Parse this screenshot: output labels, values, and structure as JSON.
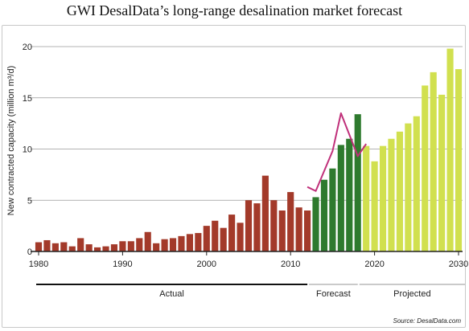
{
  "title": "GWI DesalData’s long-range desalination market forecast",
  "source": "Source: DesalData.com",
  "chart_data": {
    "type": "bar",
    "title": "GWI DesalData’s long-range desalination market forecast",
    "xlabel": "",
    "ylabel": "New contracted capacity (million m³/d)",
    "ylim": [
      0,
      20
    ],
    "xlim": [
      1980,
      2030
    ],
    "y_ticks": [
      0,
      5,
      10,
      15,
      20
    ],
    "x_ticks": [
      1980,
      1990,
      2000,
      2010,
      2020,
      2030
    ],
    "grid": true,
    "series": [
      {
        "name": "Actual",
        "color": "#a33a2a",
        "x": [
          1980,
          1981,
          1982,
          1983,
          1984,
          1985,
          1986,
          1987,
          1988,
          1989,
          1990,
          1991,
          1992,
          1993,
          1994,
          1995,
          1996,
          1997,
          1998,
          1999,
          2000,
          2001,
          2002,
          2003,
          2004,
          2005,
          2006,
          2007,
          2008,
          2009,
          2010,
          2011,
          2012
        ],
        "values": [
          0.9,
          1.1,
          0.8,
          0.9,
          0.5,
          1.3,
          0.7,
          0.4,
          0.5,
          0.7,
          1.0,
          1.0,
          1.3,
          1.9,
          0.8,
          1.2,
          1.3,
          1.5,
          1.7,
          1.8,
          2.5,
          3.0,
          2.3,
          3.6,
          2.8,
          5.0,
          4.7,
          7.4,
          5.0,
          4.0,
          5.8,
          4.3,
          4.0
        ]
      },
      {
        "name": "Forecast",
        "color": "#2e7a2e",
        "x": [
          2013,
          2014,
          2015,
          2016,
          2017,
          2018
        ],
        "values": [
          5.3,
          7.0,
          8.1,
          10.4,
          11.0,
          13.4
        ]
      },
      {
        "name": "Projected",
        "color": "#d1e04f",
        "x": [
          2019,
          2020,
          2021,
          2022,
          2023,
          2024,
          2025,
          2026,
          2027,
          2028,
          2029,
          2030
        ],
        "values": [
          10.3,
          8.8,
          10.3,
          11.0,
          11.7,
          12.5,
          13.2,
          16.2,
          17.5,
          15.3,
          19.8,
          17.8
        ]
      }
    ],
    "line": {
      "color": "#c0307a",
      "x": [
        2012,
        2013,
        2015,
        2016,
        2018,
        2019
      ],
      "values": [
        6.3,
        5.9,
        9.8,
        13.5,
        9.3,
        10.5
      ]
    },
    "period_labels": [
      {
        "label": "Actual",
        "start": 1980,
        "end": 2012
      },
      {
        "label": "Forecast",
        "start": 2012,
        "end": 2018
      },
      {
        "label": "Projected",
        "start": 2018,
        "end": 2030
      }
    ]
  }
}
